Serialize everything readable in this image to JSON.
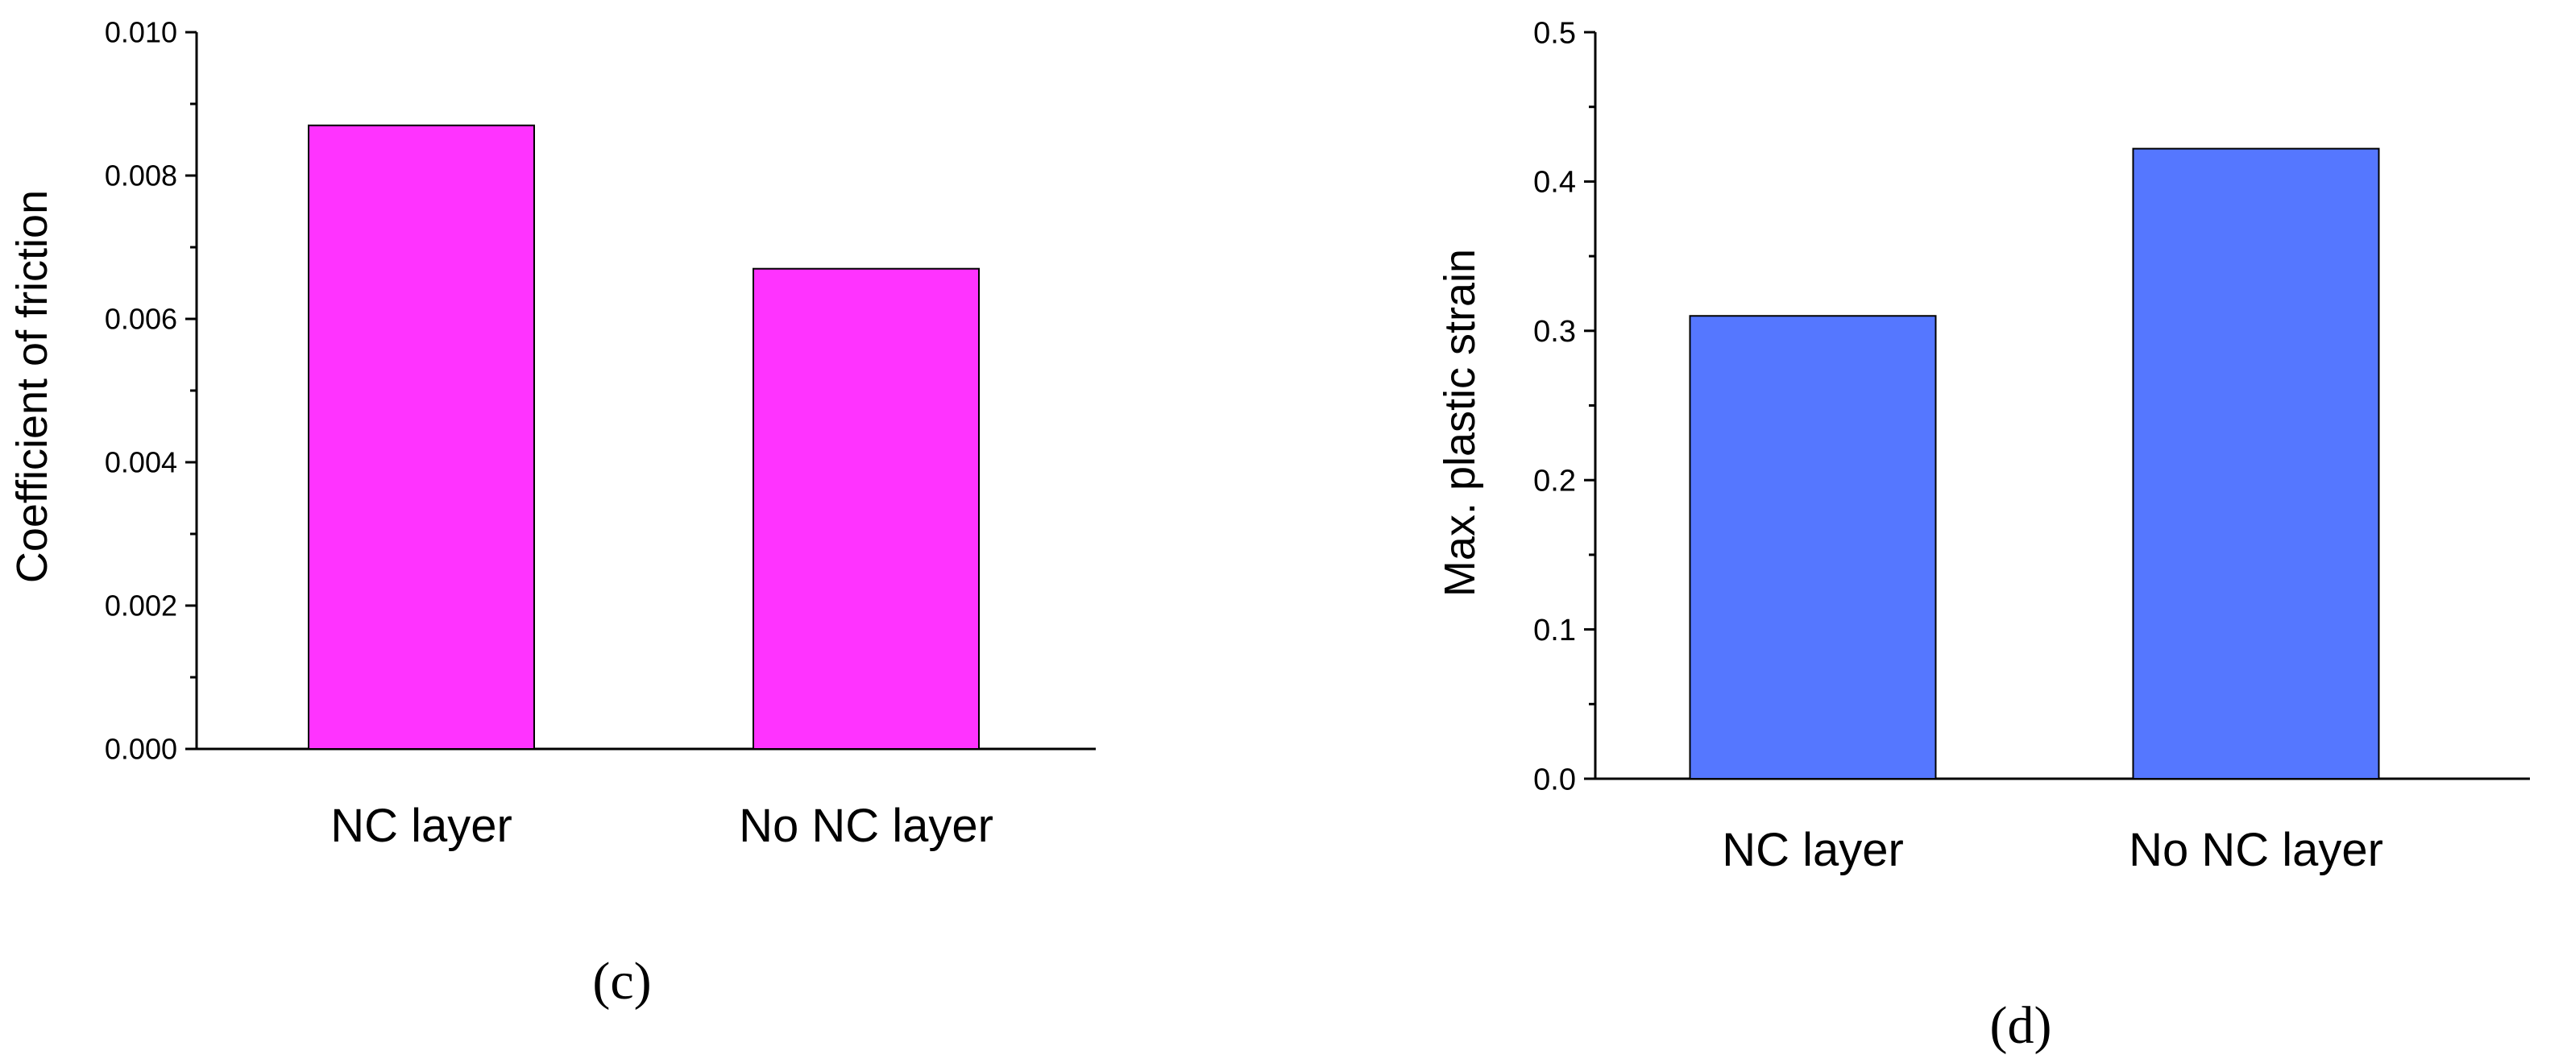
{
  "chart_data": [
    {
      "type": "bar",
      "panel_label": "(c)",
      "categories": [
        "NC layer",
        "No NC layer"
      ],
      "values": [
        0.0087,
        0.0067
      ],
      "ylabel": "Coefficient of friction",
      "xlabel": "",
      "ylim": [
        0,
        0.01
      ],
      "yticks": [
        "0.000",
        "0.002",
        "0.004",
        "0.006",
        "0.008",
        "0.010"
      ],
      "bar_color": "#ff33ff",
      "grid": false
    },
    {
      "type": "bar",
      "panel_label": "(d)",
      "categories": [
        "NC layer",
        "No NC layer"
      ],
      "values": [
        0.31,
        0.422
      ],
      "ylabel": "Max. plastic strain",
      "xlabel": "",
      "ylim": [
        0,
        0.5
      ],
      "yticks": [
        "0.0",
        "0.1",
        "0.2",
        "0.3",
        "0.4",
        "0.5"
      ],
      "bar_color": "#5577ff",
      "grid": false
    }
  ]
}
